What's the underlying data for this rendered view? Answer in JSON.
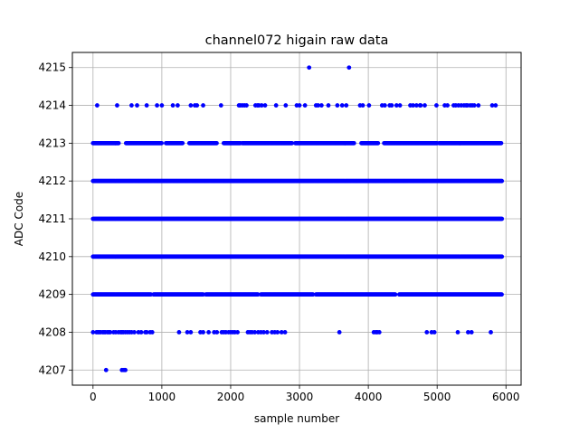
{
  "chart_data": {
    "type": "scatter",
    "title": "channel072 higain raw data",
    "xlabel": "sample number",
    "ylabel": "ADC Code",
    "xlim": [
      -300,
      6220
    ],
    "ylim": [
      4206.6,
      4215.4
    ],
    "xticks": [
      0,
      1000,
      2000,
      3000,
      4000,
      5000,
      6000
    ],
    "yticks": [
      4207,
      4208,
      4209,
      4210,
      4211,
      4212,
      4213,
      4214,
      4215
    ],
    "grid": true,
    "marker_color": "#0000ff",
    "x_range_of_samples": [
      0,
      5940
    ],
    "series": [
      {
        "levels": [
          {
            "y": 4215,
            "x": [
              3140,
              3720
            ]
          },
          {
            "y": 4214,
            "x": [
              60,
              350,
              560,
              640,
              780,
              930,
              1000,
              1160,
              1230,
              1420,
              1480,
              1510,
              1600,
              1860,
              2120,
              2140,
              2170,
              2200,
              2230,
              2360,
              2390,
              2410,
              2450,
              2500,
              2660,
              2800,
              2960,
              3000,
              3080,
              3240,
              3270,
              3320,
              3420,
              3550,
              3620,
              3680,
              3880,
              3920,
              4010,
              4200,
              4240,
              4310,
              4340,
              4410,
              4460,
              4610,
              4650,
              4700,
              4750,
              4760,
              4820,
              4990,
              5110,
              5150,
              5240,
              5270,
              5310,
              5350,
              5390,
              5420,
              5440,
              5480,
              5510,
              5540,
              5600,
              5800,
              5850
            ]
          },
          {
            "y": 4213,
            "dense_x": [
              [
                0,
                380
              ],
              [
                480,
                1000
              ],
              [
                1060,
                1300
              ],
              [
                1400,
                1800
              ],
              [
                1900,
                2150
              ],
              [
                2170,
                2900
              ],
              [
                2940,
                3800
              ],
              [
                3900,
                4150
              ],
              [
                4230,
                5000
              ],
              [
                5030,
                5940
              ]
            ]
          },
          {
            "y": 4212,
            "dense_x": [
              [
                0,
                5940
              ]
            ]
          },
          {
            "y": 4211,
            "dense_x": [
              [
                0,
                5940
              ]
            ]
          },
          {
            "y": 4210,
            "dense_x": [
              [
                0,
                5940
              ]
            ]
          },
          {
            "y": 4209,
            "dense_x": [
              [
                0,
                850
              ],
              [
                880,
                1600
              ],
              [
                1640,
                2400
              ],
              [
                2440,
                3200
              ],
              [
                3240,
                4400
              ],
              [
                4450,
                5940
              ]
            ]
          },
          {
            "y": 4208,
            "x": [
              0,
              50,
              70,
              90,
              110,
              140,
              160,
              180,
              210,
              230,
              250,
              300,
              330,
              370,
              400,
              420,
              440,
              470,
              500,
              530,
              560,
              600,
              660,
              700,
              760,
              780,
              830,
              860,
              1250,
              1370,
              1420,
              1560,
              1600,
              1680,
              1760,
              1800,
              1870,
              1900,
              1930,
              1970,
              2000,
              2030,
              2060,
              2100,
              2250,
              2280,
              2310,
              2350,
              2400,
              2440,
              2480,
              2530,
              2600,
              2640,
              2680,
              2740,
              2790,
              3580,
              4080,
              4110,
              4130,
              4160,
              4850,
              4920,
              4960,
              5300,
              5450,
              5500,
              5780
            ]
          },
          {
            "y": 4207,
            "x": [
              190,
              420,
              450,
              470
            ]
          }
        ]
      }
    ]
  }
}
